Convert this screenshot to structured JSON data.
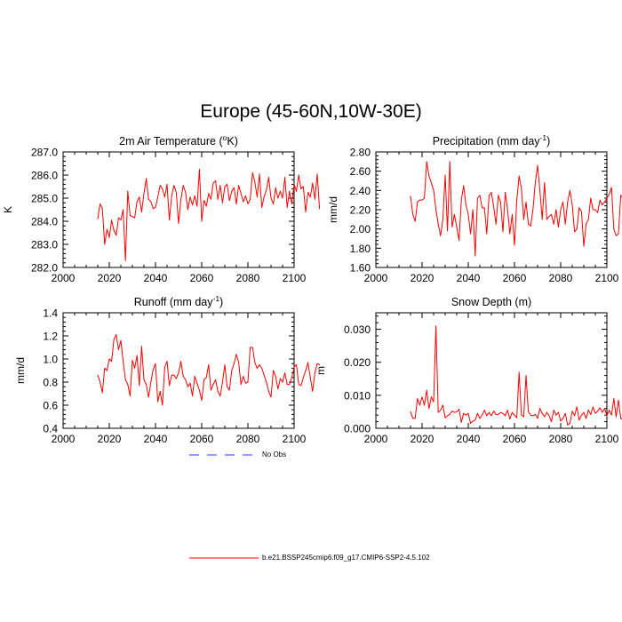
{
  "page": {
    "title": "Europe (45-60N,10W-30E)",
    "line_color": "#ff0000",
    "obs_color": "#0000ff"
  },
  "legend": {
    "obs_label": "No Obs",
    "model_label": "b.e21.BSSP245cmip6.f09_g17.CMIP6-SSP2-4.5.102"
  },
  "chart_data": [
    {
      "id": "tas",
      "type": "line",
      "title_text": "2m Air Temperature (",
      "title_sup": "o",
      "title_after": "K)",
      "ylabel": "K",
      "xlim": [
        2000,
        2100
      ],
      "ylim": [
        282.0,
        287.0
      ],
      "xticks": [
        2000,
        2020,
        2040,
        2060,
        2080,
        2100
      ],
      "yticks": [
        282.0,
        283.0,
        284.0,
        285.0,
        286.0,
        287.0
      ],
      "ytick_labels": [
        "282.0",
        "283.0",
        "284.0",
        "285.0",
        "286.0",
        "287.0"
      ],
      "x_start": 2015,
      "values": [
        284.1,
        284.75,
        284.55,
        283.0,
        283.65,
        283.3,
        284.05,
        283.6,
        283.4,
        284.15,
        284.05,
        284.5,
        282.3,
        285.3,
        284.25,
        284.2,
        284.15,
        284.85,
        285.05,
        284.4,
        285.2,
        285.85,
        284.95,
        284.85,
        284.55,
        284.6,
        285.05,
        285.55,
        285.4,
        285.05,
        285.6,
        284.05,
        285.1,
        285.55,
        285.25,
        283.9,
        284.95,
        285.55,
        285.25,
        284.5,
        285.05,
        284.7,
        285.1,
        284.65,
        286.25,
        284.0,
        284.9,
        284.65,
        285.2,
        284.95,
        285.65,
        285.75,
        284.95,
        285.55,
        284.8,
        285.5,
        285.6,
        284.9,
        285.3,
        285.45,
        284.75,
        285.55,
        285.2,
        284.85,
        285.1,
        284.75,
        284.95,
        286.1,
        285.7,
        285.05,
        286.05,
        284.6,
        285.05,
        285.35,
        285.9,
        285.0,
        284.75,
        285.45,
        285.0,
        285.3,
        285.0,
        285.9,
        284.6,
        285.3,
        284.75,
        285.6,
        285.3,
        286.0,
        285.4,
        285.5,
        284.4,
        285.25,
        285.05,
        285.65,
        284.95,
        286.05,
        284.55
      ]
    },
    {
      "id": "pr",
      "type": "line",
      "title_text": "Precipitation (mm day",
      "title_sup": "-1",
      "title_after": ")",
      "ylabel": "mm/d",
      "xlim": [
        2000,
        2100
      ],
      "ylim": [
        1.6,
        2.8
      ],
      "xticks": [
        2000,
        2020,
        2040,
        2060,
        2080,
        2100
      ],
      "yticks": [
        1.6,
        1.8,
        2.0,
        2.2,
        2.4,
        2.6,
        2.8
      ],
      "ytick_labels": [
        "1.60",
        "1.80",
        "2.00",
        "2.20",
        "2.40",
        "2.60",
        "2.80"
      ],
      "x_start": 2015,
      "values": [
        2.34,
        2.15,
        2.08,
        2.28,
        2.3,
        2.3,
        2.32,
        2.7,
        2.55,
        2.48,
        2.4,
        2.2,
        2.05,
        1.93,
        2.1,
        2.56,
        1.98,
        2.7,
        2.02,
        2.15,
        2.02,
        1.88,
        2.3,
        2.45,
        2.25,
        2.15,
        1.95,
        2.2,
        1.72,
        2.32,
        2.35,
        2.22,
        2.22,
        1.95,
        2.35,
        2.38,
        2.23,
        2.05,
        2.35,
        2.28,
        1.97,
        2.38,
        2.2,
        1.95,
        2.15,
        1.83,
        2.3,
        2.55,
        2.42,
        2.1,
        2.28,
        2.05,
        2.03,
        2.2,
        2.48,
        2.66,
        2.4,
        2.1,
        2.48,
        2.1,
        2.13,
        2.15,
        2.05,
        2.2,
        2.02,
        2.2,
        2.28,
        2.05,
        2.28,
        2.4,
        2.25,
        1.97,
        2.0,
        2.22,
        2.18,
        1.82,
        2.05,
        2.1,
        2.32,
        2.2,
        2.2,
        2.17,
        2.3,
        2.25,
        2.28,
        2.32,
        2.36,
        2.43,
        2.0,
        1.93,
        1.95,
        2.35,
        2.32,
        2.35,
        2.32,
        2.33,
        1.95,
        2.0
      ]
    },
    {
      "id": "mrro",
      "type": "line",
      "title_text": "Runoff (mm day",
      "title_sup": "-1",
      "title_after": ")",
      "ylabel": "mm/d",
      "xlim": [
        2000,
        2100
      ],
      "ylim": [
        0.4,
        1.4
      ],
      "xticks": [
        2000,
        2020,
        2040,
        2060,
        2080,
        2100
      ],
      "yticks": [
        0.4,
        0.6,
        0.8,
        1.0,
        1.2,
        1.4
      ],
      "ytick_labels": [
        "0.4",
        "0.6",
        "0.8",
        "1.0",
        "1.2",
        "1.4"
      ],
      "x_start": 2015,
      "values": [
        0.86,
        0.8,
        0.71,
        0.92,
        0.9,
        1.0,
        0.98,
        1.17,
        1.21,
        1.08,
        1.16,
        0.98,
        0.82,
        0.78,
        0.68,
        0.99,
        0.92,
        1.03,
        0.77,
        1.11,
        0.82,
        0.78,
        0.67,
        0.8,
        0.91,
        0.96,
        0.63,
        0.72,
        0.6,
        0.93,
        0.98,
        0.77,
        0.86,
        0.86,
        0.83,
        0.88,
        0.98,
        0.85,
        0.82,
        0.76,
        0.79,
        0.68,
        0.85,
        0.79,
        0.73,
        0.64,
        0.82,
        0.84,
        0.95,
        0.73,
        0.78,
        0.82,
        0.72,
        0.68,
        0.8,
        0.95,
        0.76,
        0.73,
        0.9,
        0.96,
        1.04,
        0.97,
        0.78,
        0.85,
        0.79,
        0.8,
        1.1,
        1.1,
        0.97,
        0.92,
        0.95,
        0.92,
        0.86,
        0.8,
        0.72,
        0.67,
        0.9,
        0.85,
        0.74,
        0.83,
        0.8,
        0.88,
        0.78,
        0.78,
        0.84,
        0.93,
        0.95,
        0.78,
        0.77,
        0.84,
        0.9,
        0.97,
        0.84,
        0.72,
        0.88,
        0.96,
        0.95
      ]
    },
    {
      "id": "snd",
      "type": "line",
      "title_text": "Snow Depth (m)",
      "title_sup": "",
      "title_after": "",
      "ylabel": "m",
      "xlim": [
        2000,
        2100
      ],
      "ylim": [
        0.0,
        0.035
      ],
      "xticks": [
        2000,
        2020,
        2040,
        2060,
        2080,
        2100
      ],
      "yticks": [
        0.0,
        0.01,
        0.02,
        0.03
      ],
      "ytick_labels": [
        "0.000",
        "0.010",
        "0.020",
        "0.030"
      ],
      "x_start": 2015,
      "values": [
        0.005,
        0.003,
        0.003,
        0.009,
        0.007,
        0.0095,
        0.007,
        0.0115,
        0.006,
        0.0095,
        0.008,
        0.031,
        0.0048,
        0.0055,
        0.007,
        0.0032,
        0.0038,
        0.0042,
        0.0052,
        0.0048,
        0.005,
        0.0058,
        0.0018,
        0.0045,
        0.004,
        0.0045,
        0.0015,
        0.0022,
        0.0025,
        0.0045,
        0.003,
        0.004,
        0.0055,
        0.0038,
        0.0048,
        0.0038,
        0.0052,
        0.0042,
        0.0042,
        0.0048,
        0.0045,
        0.0038,
        0.0055,
        0.0028,
        0.0048,
        0.004,
        0.0032,
        0.017,
        0.004,
        0.0035,
        0.016,
        0.005,
        0.004,
        0.0038,
        0.0042,
        0.003,
        0.006,
        0.0045,
        0.0035,
        0.0048,
        0.0038,
        0.002,
        0.0055,
        0.004,
        0.0048,
        0.0022,
        0.003,
        0.0045,
        0.001,
        0.0015,
        0.0052,
        0.0038,
        0.0065,
        0.0025,
        0.004,
        0.0048,
        0.003,
        0.0055,
        0.0042,
        0.0065,
        0.0045,
        0.0052,
        0.0062,
        0.0048,
        0.006,
        0.0038,
        0.0055,
        0.004,
        0.009,
        0.0035,
        0.0085,
        0.003,
        0.0025,
        0.0048,
        0.0042,
        0.0035,
        0.0045
      ]
    }
  ]
}
